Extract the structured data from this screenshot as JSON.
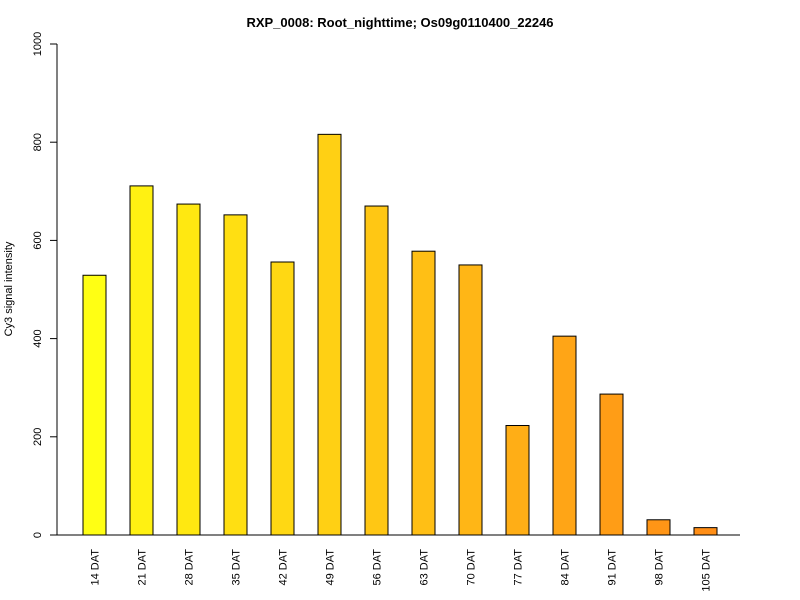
{
  "chart_data": {
    "type": "bar",
    "title": "RXP_0008: Root_nighttime; Os09g0110400_22246",
    "xlabel": "",
    "ylabel": "Cy3 signal intensity",
    "ylim": [
      0,
      1000
    ],
    "yticks": [
      0,
      200,
      400,
      600,
      800,
      1000
    ],
    "categories": [
      "14 DAT",
      "21 DAT",
      "28 DAT",
      "35 DAT",
      "42 DAT",
      "49 DAT",
      "56 DAT",
      "63 DAT",
      "70 DAT",
      "77 DAT",
      "84 DAT",
      "91 DAT",
      "98 DAT",
      "105 DAT"
    ],
    "values": [
      529,
      711,
      674,
      652,
      556,
      816,
      670,
      578,
      550,
      223,
      405,
      287,
      31,
      15
    ],
    "bar_colors": [
      "#FFFF14",
      "#FFF112",
      "#FFE811",
      "#FFDF12",
      "#FFD813",
      "#FFD014",
      "#FFC714",
      "#FFBF15",
      "#FFB616",
      "#FFAE16",
      "#FFA516",
      "#FF9D16",
      "#FF9516",
      "#FF8E16"
    ],
    "grid": false,
    "legend": "none"
  }
}
